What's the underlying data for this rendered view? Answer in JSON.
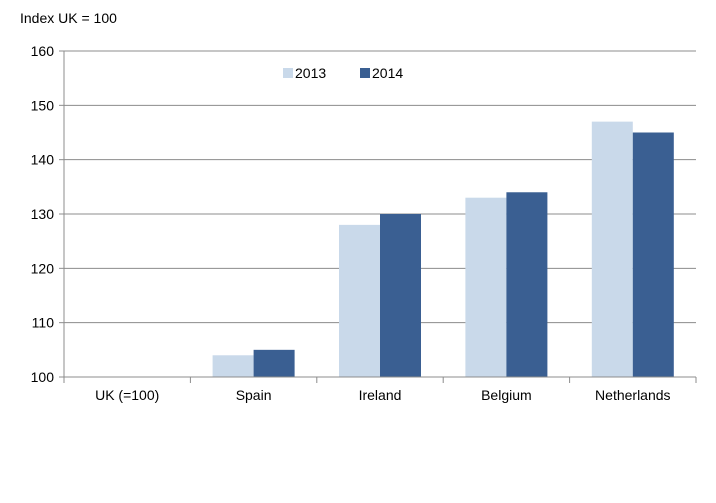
{
  "chart_data": {
    "type": "bar",
    "ylabel": "Index UK = 100",
    "categories": [
      "UK (=100)",
      "Spain",
      "Ireland",
      "Belgium",
      "Netherlands"
    ],
    "series": [
      {
        "name": "2013",
        "values": [
          100,
          104,
          128,
          133,
          147
        ],
        "color": "#c9d9ea"
      },
      {
        "name": "2014",
        "values": [
          100,
          105,
          130,
          134,
          145
        ],
        "color": "#3a5f92"
      }
    ],
    "ylim": [
      100,
      160
    ],
    "yticks": [
      100,
      110,
      120,
      130,
      140,
      150,
      160
    ],
    "grid": true,
    "legend": "top-center"
  }
}
